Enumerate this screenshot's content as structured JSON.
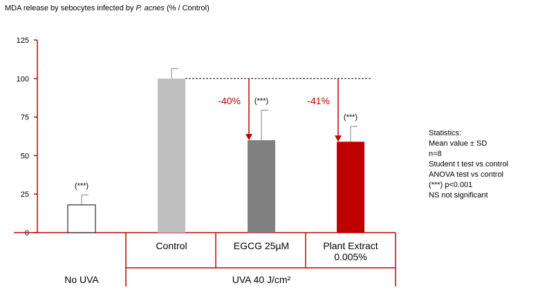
{
  "title_prefix": "MDA release by sebocytes infected by ",
  "title_italic": "P. acnes",
  "title_suffix": " (% / Control)",
  "chart_data": {
    "type": "bar",
    "ylim": [
      0,
      125
    ],
    "yticks": [
      0,
      25,
      50,
      75,
      100,
      125
    ],
    "ytick_labels": [
      "0",
      "25",
      "50",
      "75",
      "100",
      "125"
    ],
    "categories": [
      "No UVA",
      "Control",
      "EGCG 25µM",
      "Plant Extract 0.005%"
    ],
    "category_labels": [
      {
        "lines": [
          "Control"
        ]
      },
      {
        "lines": [
          "EGCG 25µM"
        ]
      },
      {
        "lines": [
          "Plant Extract",
          "0.005%"
        ]
      }
    ],
    "group_labels": [
      "No UVA",
      "UVA 40 J/cm²"
    ],
    "values": [
      18,
      100,
      60,
      59
    ],
    "errors": [
      6.5,
      6.5,
      19.5,
      10
    ],
    "colors": [
      "#ffffff",
      "#c0c0c0",
      "#808080",
      "#c00000"
    ],
    "significance": [
      "(***)",
      "",
      "(***)",
      "(***)"
    ],
    "reductions": [
      "",
      "",
      "-40%",
      "-41%"
    ],
    "reference_line": 100,
    "annotation_color": "#c00000"
  },
  "stats": {
    "lines": [
      "Statistics:",
      "Mean value ± SD",
      "n=8",
      "Student t test vs control",
      "ANOVA test vs control",
      "(***) p<0.001",
      "NS not significant"
    ]
  }
}
